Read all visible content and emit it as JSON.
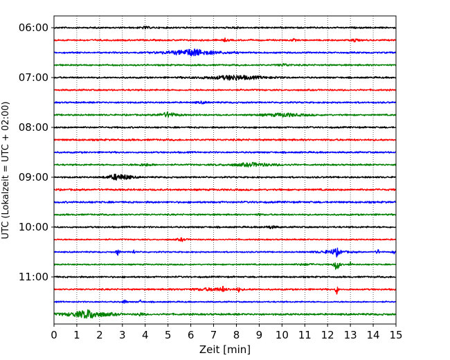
{
  "chart_data": {
    "type": "line",
    "title": "",
    "xlabel": "Zeit  [min]",
    "ylabel": "UTC (Lokalzeit = UTC + 02:00)",
    "xlim": [
      0,
      15
    ],
    "x_ticks": [
      0,
      1,
      2,
      3,
      4,
      5,
      6,
      7,
      8,
      9,
      10,
      11,
      12,
      13,
      14,
      15
    ],
    "x_tick_labels": [
      "0",
      "1",
      "2",
      "3",
      "4",
      "5",
      "6",
      "7",
      "8",
      "9",
      "10",
      "11",
      "12",
      "13",
      "14",
      "15"
    ],
    "grid": "x-dotted",
    "trace_minutes": 15,
    "y_tick_labels": [
      "06:00",
      "07:00",
      "08:00",
      "09:00",
      "10:00",
      "11:00"
    ],
    "color_cycle": [
      "#000000",
      "#ff0000",
      "#0000ff",
      "#008000"
    ],
    "series": [
      {
        "start": "06:00",
        "color": "#000000",
        "noise": 0.3,
        "events": [
          {
            "t": 4.0,
            "amp": 0.5,
            "dur": 0.15
          },
          {
            "t": 8.0,
            "amp": 0.5,
            "dur": 0.1
          }
        ]
      },
      {
        "start": "06:15",
        "color": "#ff0000",
        "noise": 0.3,
        "events": [
          {
            "t": 7.5,
            "amp": 0.6,
            "dur": 0.1
          },
          {
            "t": 10.5,
            "amp": 0.5,
            "dur": 0.1
          },
          {
            "t": 13.2,
            "amp": 0.8,
            "dur": 0.1
          }
        ]
      },
      {
        "start": "06:30",
        "color": "#0000ff",
        "noise": 0.3,
        "events": [
          {
            "t": 6.1,
            "amp": 1.6,
            "dur": 0.8
          }
        ]
      },
      {
        "start": "06:45",
        "color": "#008000",
        "noise": 0.3,
        "events": [
          {
            "t": 10.1,
            "amp": 0.6,
            "dur": 0.2
          }
        ]
      },
      {
        "start": "07:00",
        "color": "#000000",
        "noise": 0.3,
        "events": [
          {
            "t": 7.9,
            "amp": 1.1,
            "dur": 1.0
          }
        ]
      },
      {
        "start": "07:15",
        "color": "#ff0000",
        "noise": 0.3,
        "events": []
      },
      {
        "start": "07:30",
        "color": "#0000ff",
        "noise": 0.3,
        "events": [
          {
            "t": 6.5,
            "amp": 0.4,
            "dur": 0.2
          }
        ]
      },
      {
        "start": "07:45",
        "color": "#008000",
        "noise": 0.3,
        "events": [
          {
            "t": 5.0,
            "amp": 1.2,
            "dur": 0.3
          },
          {
            "t": 10.1,
            "amp": 0.8,
            "dur": 0.7
          }
        ]
      },
      {
        "start": "08:00",
        "color": "#000000",
        "noise": 0.3,
        "events": []
      },
      {
        "start": "08:15",
        "color": "#ff0000",
        "noise": 0.35,
        "events": []
      },
      {
        "start": "08:30",
        "color": "#0000ff",
        "noise": 0.3,
        "events": []
      },
      {
        "start": "08:45",
        "color": "#008000",
        "noise": 0.3,
        "events": [
          {
            "t": 4.0,
            "amp": 0.5,
            "dur": 0.3
          },
          {
            "t": 8.7,
            "amp": 0.8,
            "dur": 0.8
          }
        ]
      },
      {
        "start": "09:00",
        "color": "#000000",
        "noise": 0.3,
        "events": [
          {
            "t": 2.7,
            "amp": 1.1,
            "dur": 0.3
          },
          {
            "t": 3.1,
            "amp": 0.8,
            "dur": 0.3
          }
        ]
      },
      {
        "start": "09:15",
        "color": "#ff0000",
        "noise": 0.35,
        "events": []
      },
      {
        "start": "09:30",
        "color": "#0000ff",
        "noise": 0.35,
        "events": []
      },
      {
        "start": "09:45",
        "color": "#008000",
        "noise": 0.3,
        "events": [
          {
            "t": 9.0,
            "amp": 0.4,
            "dur": 0.1
          }
        ]
      },
      {
        "start": "10:00",
        "color": "#000000",
        "noise": 0.3,
        "events": [
          {
            "t": 9.5,
            "amp": 0.6,
            "dur": 0.2
          }
        ]
      },
      {
        "start": "10:15",
        "color": "#ff0000",
        "noise": 0.25,
        "events": [
          {
            "t": 5.6,
            "amp": 0.7,
            "dur": 0.15
          }
        ]
      },
      {
        "start": "10:30",
        "color": "#0000ff",
        "noise": 0.25,
        "events": [
          {
            "t": 2.8,
            "amp": 1.8,
            "dur": 0.05
          },
          {
            "t": 3.5,
            "amp": 0.9,
            "dur": 0.05
          },
          {
            "t": 12.2,
            "amp": 0.8,
            "dur": 0.5
          },
          {
            "t": 12.4,
            "amp": 1.4,
            "dur": 0.1
          },
          {
            "t": 14.2,
            "amp": 1.4,
            "dur": 0.05
          },
          {
            "t": 14.9,
            "amp": 0.9,
            "dur": 0.05
          }
        ]
      },
      {
        "start": "10:45",
        "color": "#008000",
        "noise": 0.25,
        "events": [
          {
            "t": 11.0,
            "amp": 0.4,
            "dur": 0.3
          },
          {
            "t": 12.4,
            "amp": 3.8,
            "dur": 0.08
          },
          {
            "t": 13.0,
            "amp": 0.9,
            "dur": 0.05
          }
        ]
      },
      {
        "start": "11:00",
        "color": "#000000",
        "noise": 0.3,
        "events": []
      },
      {
        "start": "11:15",
        "color": "#ff0000",
        "noise": 0.3,
        "events": [
          {
            "t": 7.0,
            "amp": 0.6,
            "dur": 0.8
          },
          {
            "t": 7.4,
            "amp": 1.2,
            "dur": 0.05
          },
          {
            "t": 8.1,
            "amp": 1.0,
            "dur": 0.05
          },
          {
            "t": 12.4,
            "amp": 3.0,
            "dur": 0.04
          }
        ]
      },
      {
        "start": "11:30",
        "color": "#0000ff",
        "noise": 0.25,
        "events": [
          {
            "t": 3.1,
            "amp": 1.4,
            "dur": 0.05
          },
          {
            "t": 3.8,
            "amp": 0.9,
            "dur": 0.05
          }
        ]
      },
      {
        "start": "11:45",
        "color": "#008000",
        "noise": 0.35,
        "events": [
          {
            "t": 1.5,
            "amp": 2.0,
            "dur": 0.6
          },
          {
            "t": 3.8,
            "amp": 0.8,
            "dur": 0.1
          }
        ]
      }
    ]
  }
}
